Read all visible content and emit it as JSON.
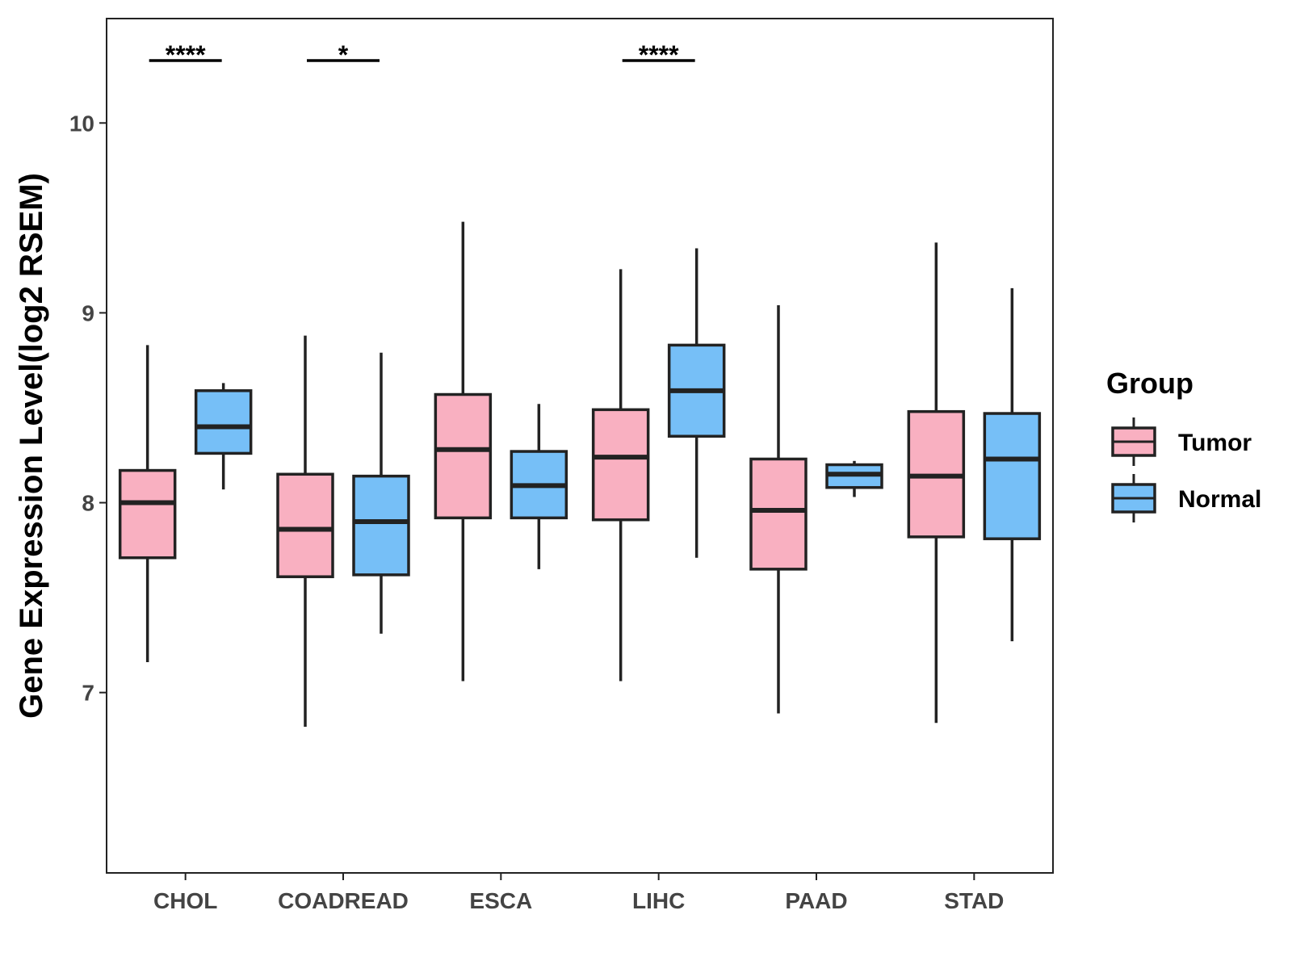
{
  "chart_data": {
    "type": "box",
    "title": "",
    "xlabel": "",
    "ylabel": "Gene Expression Level(log2 RSEM)",
    "ylim": [
      6.05,
      10.55
    ],
    "yticks": [
      7,
      8,
      9,
      10
    ],
    "ytick_labels": [
      "7",
      "8",
      "9",
      "10"
    ],
    "categories": [
      "CHOL",
      "COADREAD",
      "ESCA",
      "LIHC",
      "PAAD",
      "STAD"
    ],
    "legend": {
      "title": "Group",
      "position": "right",
      "entries": [
        {
          "name": "Tumor",
          "color": "#F9B0C1"
        },
        {
          "name": "Normal",
          "color": "#76BFF7"
        }
      ]
    },
    "series": [
      {
        "name": "Tumor",
        "color": "#F9B0C1",
        "boxes": [
          {
            "min": 7.16,
            "q1": 7.71,
            "median": 8.0,
            "q3": 8.17,
            "max": 8.83
          },
          {
            "min": 6.82,
            "q1": 7.61,
            "median": 7.86,
            "q3": 8.15,
            "max": 8.88
          },
          {
            "min": 7.06,
            "q1": 7.92,
            "median": 8.28,
            "q3": 8.57,
            "max": 9.48
          },
          {
            "min": 7.06,
            "q1": 7.91,
            "median": 8.24,
            "q3": 8.49,
            "max": 9.23
          },
          {
            "min": 6.89,
            "q1": 7.65,
            "median": 7.96,
            "q3": 8.23,
            "max": 9.04
          },
          {
            "min": 6.84,
            "q1": 7.82,
            "median": 8.14,
            "q3": 8.48,
            "max": 9.37
          }
        ]
      },
      {
        "name": "Normal",
        "color": "#76BFF7",
        "boxes": [
          {
            "min": 8.07,
            "q1": 8.26,
            "median": 8.4,
            "q3": 8.59,
            "max": 8.63
          },
          {
            "min": 7.31,
            "q1": 7.62,
            "median": 7.9,
            "q3": 8.14,
            "max": 8.79
          },
          {
            "min": 7.65,
            "q1": 7.92,
            "median": 8.09,
            "q3": 8.27,
            "max": 8.52
          },
          {
            "min": 7.71,
            "q1": 8.35,
            "median": 8.59,
            "q3": 8.83,
            "max": 9.34
          },
          {
            "min": 8.03,
            "q1": 8.08,
            "median": 8.15,
            "q3": 8.2,
            "max": 8.22
          },
          {
            "min": 7.27,
            "q1": 7.81,
            "median": 8.23,
            "q3": 8.47,
            "max": 9.13
          }
        ]
      }
    ],
    "significance": [
      {
        "category": "CHOL",
        "label": "****"
      },
      {
        "category": "COADREAD",
        "label": "*"
      },
      {
        "category": "LIHC",
        "label": "****"
      }
    ]
  }
}
